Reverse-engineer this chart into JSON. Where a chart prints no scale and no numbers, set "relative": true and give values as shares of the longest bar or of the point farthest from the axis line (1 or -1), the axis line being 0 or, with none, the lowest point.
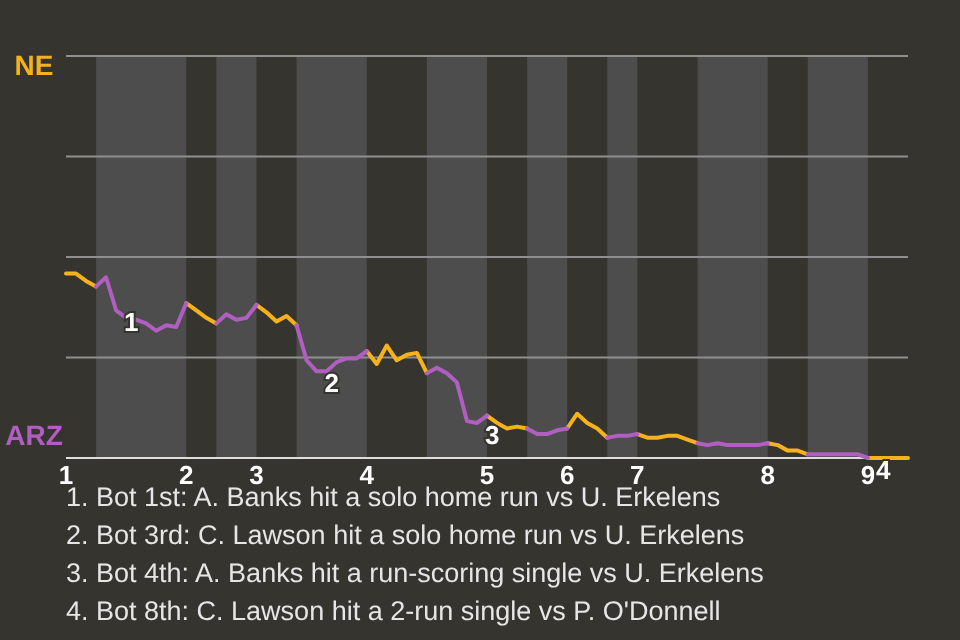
{
  "chart_data": {
    "type": "line",
    "relative": true,
    "categories": [
      "1",
      null,
      null,
      null,
      null,
      null,
      null,
      null,
      null,
      null,
      null,
      null,
      "2",
      null,
      null,
      null,
      null,
      null,
      null,
      "3",
      null,
      null,
      null,
      null,
      null,
      null,
      null,
      null,
      null,
      null,
      "4",
      null,
      null,
      null,
      null,
      null,
      null,
      null,
      null,
      null,
      null,
      null,
      "5",
      null,
      null,
      null,
      null,
      null,
      null,
      null,
      "6",
      null,
      null,
      null,
      null,
      null,
      null,
      "7",
      null,
      null,
      null,
      null,
      null,
      null,
      null,
      null,
      null,
      null,
      null,
      null,
      "8",
      null,
      null,
      null,
      null,
      null,
      null,
      null,
      null,
      null,
      "9",
      null,
      null,
      null,
      null
    ],
    "series": [
      {
        "color": "#f5b21c",
        "values": [
          1,
          1,
          0.96,
          0.93,
          null,
          null,
          null,
          null,
          null,
          null,
          null,
          null,
          0.84,
          0.8,
          0.76,
          0.73,
          null,
          null,
          null,
          0.83,
          0.79,
          0.74,
          0.77,
          0.72,
          null,
          null,
          null,
          null,
          null,
          null,
          0.58,
          0.51,
          0.61,
          0.53,
          0.56,
          0.57,
          0.46,
          null,
          null,
          null,
          null,
          null,
          0.23,
          0.19,
          0.16,
          0.17,
          0.16,
          null,
          null,
          null,
          0.16,
          0.24,
          0.19,
          0.16,
          0.11,
          null,
          null,
          0.13,
          0.11,
          0.11,
          0.12,
          0.12,
          0.1,
          0.08,
          null,
          null,
          null,
          null,
          null,
          null,
          0.08,
          0.07,
          0.04,
          0.04,
          0.02,
          null,
          null,
          null,
          null,
          null,
          0,
          0,
          0,
          0,
          0
        ]
      },
      {
        "color": "#b05fc0",
        "values": [
          null,
          null,
          null,
          0.93,
          0.98,
          0.8,
          0.76,
          0.75,
          0.73,
          0.69,
          0.72,
          0.71,
          0.84,
          null,
          null,
          0.73,
          0.78,
          0.75,
          0.76,
          0.83,
          null,
          null,
          null,
          0.72,
          0.53,
          0.47,
          0.47,
          0.52,
          0.54,
          0.54,
          0.58,
          null,
          null,
          null,
          null,
          null,
          0.46,
          0.49,
          0.46,
          0.41,
          0.2,
          0.19,
          0.23,
          null,
          null,
          null,
          0.16,
          0.13,
          0.13,
          0.15,
          0.16,
          null,
          null,
          null,
          0.11,
          0.12,
          0.12,
          0.13,
          null,
          null,
          null,
          null,
          null,
          0.08,
          0.07,
          0.08,
          0.07,
          0.07,
          0.07,
          0.07,
          0.08,
          null,
          null,
          null,
          0.02,
          0.02,
          0.02,
          0.02,
          0.02,
          0.02,
          0,
          null,
          null,
          null,
          null
        ]
      }
    ],
    "ref_lines": [
      {
        "axis": "y",
        "value": 0.545,
        "color": "#8f8f8f"
      },
      {
        "axis": "y",
        "value": 1.09,
        "color": "#8f8f8f"
      },
      {
        "axis": "y",
        "value": 1.635,
        "color": "#8f8f8f"
      },
      {
        "axis": "y",
        "value": 2.18,
        "color": "#8f8f8f"
      }
    ],
    "annotations": [
      {
        "text": "1",
        "y": 0.8
      },
      {
        "text": "2",
        "y": 0.47
      },
      {
        "text": "3",
        "y": 0.19
      },
      {
        "text": "4",
        "y": 0
      },
      "NE",
      "ARZ",
      "1. Bot 1st: A. Banks hit a solo home run vs U. Erkelens",
      "2. Bot 3rd: C. Lawson hit a solo home run vs U. Erkelens",
      "3. Bot 4th: A. Banks hit a run-scoring single vs U. Erkelens",
      "4. Bot 8th: C. Lawson hit a 2-run single vs P. O'Donnell"
    ]
  }
}
